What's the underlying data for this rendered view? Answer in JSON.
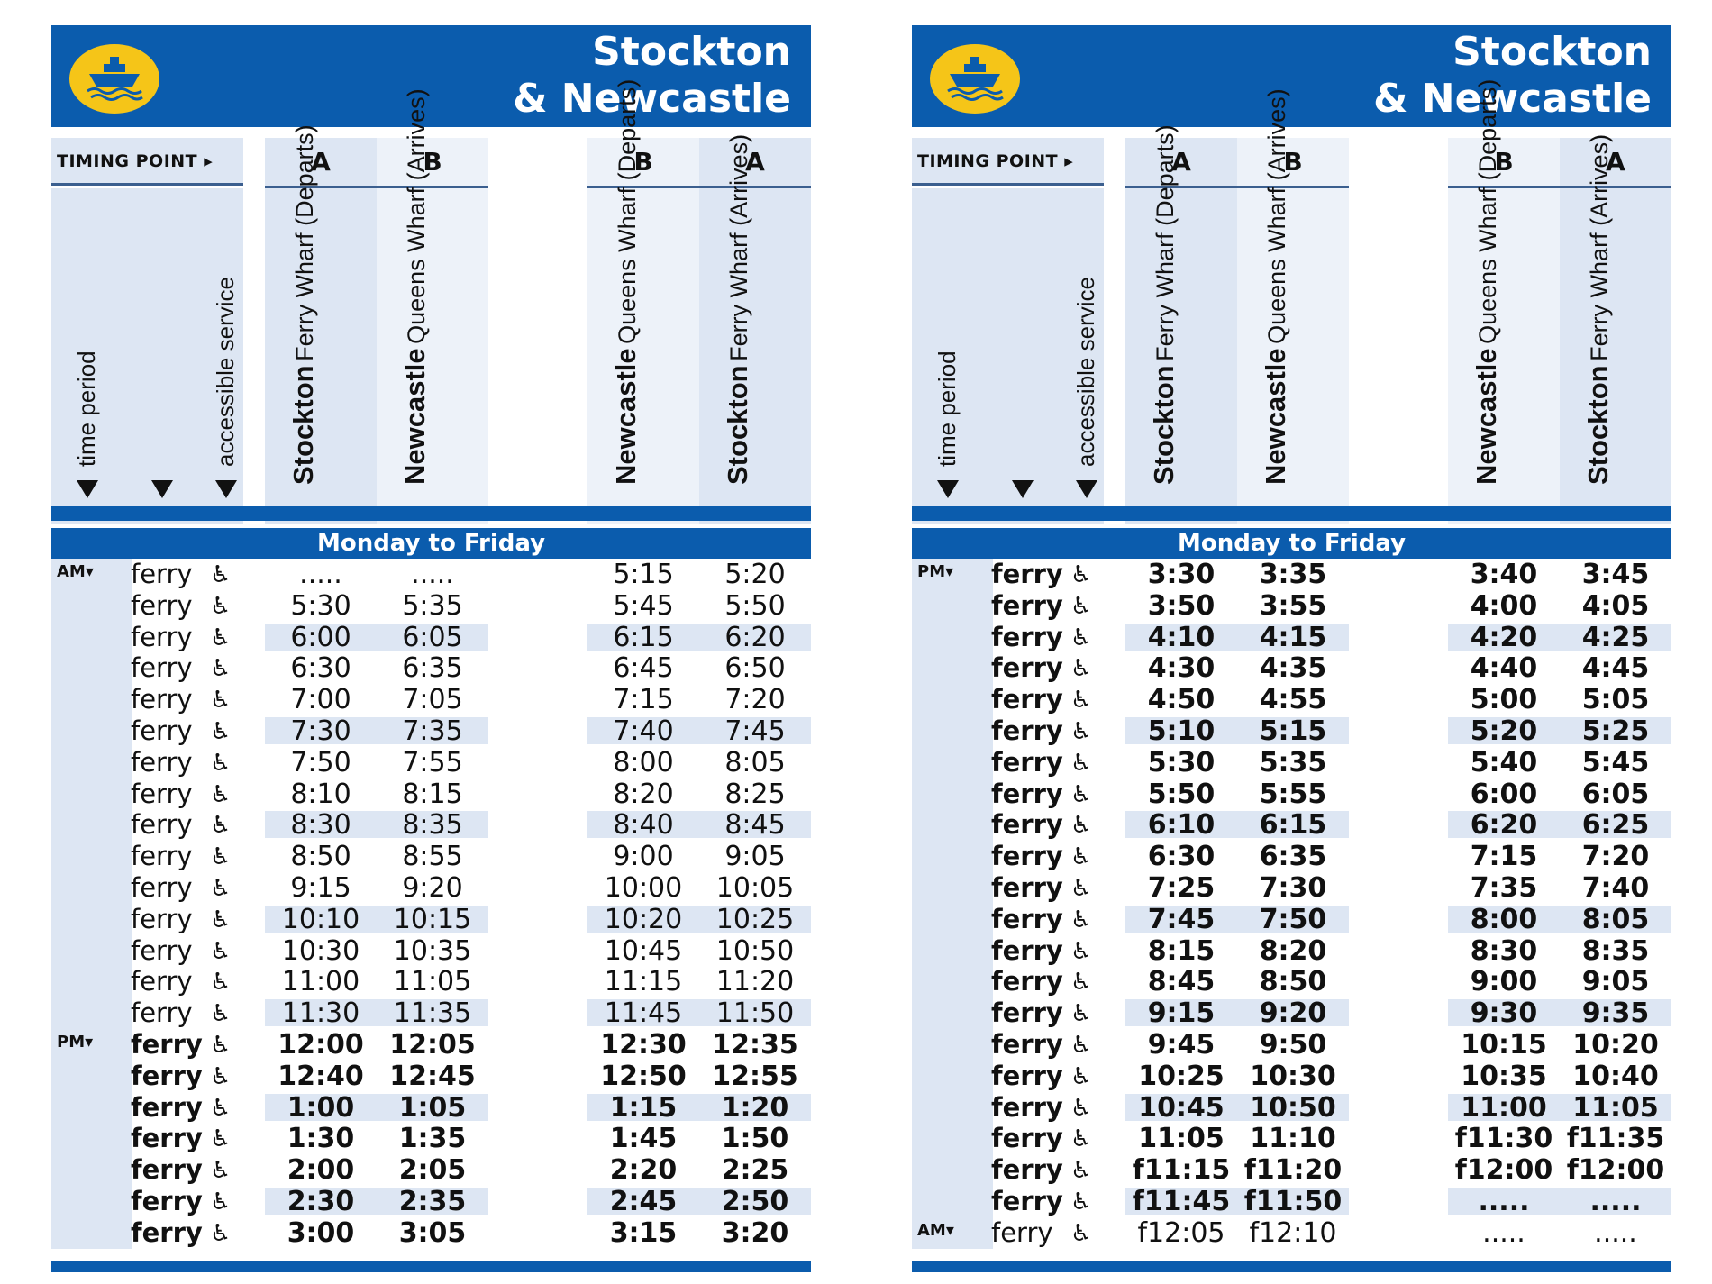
{
  "colors": {
    "brand_blue": "#0b5cad",
    "header_tint": "#dde6f3",
    "row_tint": "#dde6f3",
    "logo_yellow": "#f5c518"
  },
  "panels": [
    {
      "title_line1": "Stockton",
      "title_line2": "& Newcastle",
      "logo_icon": "ferry-icon",
      "timing_point_label": "TIMING POINT ▸",
      "timing_points": [
        "A",
        "B",
        "B",
        "A"
      ],
      "column_labels": {
        "time_period": "time period",
        "accessible": "accessible service",
        "stops": [
          {
            "name": "Stockton",
            "sub": "Ferry Wharf (Departs)"
          },
          {
            "name": "Newcastle",
            "sub": "Queens Wharf (Arrives)"
          },
          {
            "name": "Newcastle",
            "sub": "Queens Wharf (Departs)"
          },
          {
            "name": "Stockton",
            "sub": "Ferry Wharf (Arrives)"
          }
        ]
      },
      "day_label": "Monday to Friday",
      "rows": [
        {
          "period": "AM▾",
          "mode": "ferry",
          "acc": "♿",
          "times": [
            ".....",
            ".....",
            "5:15",
            "5:20"
          ],
          "bold": false
        },
        {
          "period": "",
          "mode": "ferry",
          "acc": "♿",
          "times": [
            "5:30",
            "5:35",
            "5:45",
            "5:50"
          ],
          "bold": false
        },
        {
          "period": "",
          "mode": "ferry",
          "acc": "♿",
          "times": [
            "6:00",
            "6:05",
            "6:15",
            "6:20"
          ],
          "bold": false
        },
        {
          "period": "",
          "mode": "ferry",
          "acc": "♿",
          "times": [
            "6:30",
            "6:35",
            "6:45",
            "6:50"
          ],
          "bold": false
        },
        {
          "period": "",
          "mode": "ferry",
          "acc": "♿",
          "times": [
            "7:00",
            "7:05",
            "7:15",
            "7:20"
          ],
          "bold": false
        },
        {
          "period": "",
          "mode": "ferry",
          "acc": "♿",
          "times": [
            "7:30",
            "7:35",
            "7:40",
            "7:45"
          ],
          "bold": false
        },
        {
          "period": "",
          "mode": "ferry",
          "acc": "♿",
          "times": [
            "7:50",
            "7:55",
            "8:00",
            "8:05"
          ],
          "bold": false
        },
        {
          "period": "",
          "mode": "ferry",
          "acc": "♿",
          "times": [
            "8:10",
            "8:15",
            "8:20",
            "8:25"
          ],
          "bold": false
        },
        {
          "period": "",
          "mode": "ferry",
          "acc": "♿",
          "times": [
            "8:30",
            "8:35",
            "8:40",
            "8:45"
          ],
          "bold": false
        },
        {
          "period": "",
          "mode": "ferry",
          "acc": "♿",
          "times": [
            "8:50",
            "8:55",
            "9:00",
            "9:05"
          ],
          "bold": false
        },
        {
          "period": "",
          "mode": "ferry",
          "acc": "♿",
          "times": [
            "9:15",
            "9:20",
            "10:00",
            "10:05"
          ],
          "bold": false
        },
        {
          "period": "",
          "mode": "ferry",
          "acc": "♿",
          "times": [
            "10:10",
            "10:15",
            "10:20",
            "10:25"
          ],
          "bold": false
        },
        {
          "period": "",
          "mode": "ferry",
          "acc": "♿",
          "times": [
            "10:30",
            "10:35",
            "10:45",
            "10:50"
          ],
          "bold": false
        },
        {
          "period": "",
          "mode": "ferry",
          "acc": "♿",
          "times": [
            "11:00",
            "11:05",
            "11:15",
            "11:20"
          ],
          "bold": false
        },
        {
          "period": "",
          "mode": "ferry",
          "acc": "♿",
          "times": [
            "11:30",
            "11:35",
            "11:45",
            "11:50"
          ],
          "bold": false
        },
        {
          "period": "PM▾",
          "mode": "ferry",
          "acc": "♿",
          "times": [
            "12:00",
            "12:05",
            "12:30",
            "12:35"
          ],
          "bold": true
        },
        {
          "period": "",
          "mode": "ferry",
          "acc": "♿",
          "times": [
            "12:40",
            "12:45",
            "12:50",
            "12:55"
          ],
          "bold": true
        },
        {
          "period": "",
          "mode": "ferry",
          "acc": "♿",
          "times": [
            "1:00",
            "1:05",
            "1:15",
            "1:20"
          ],
          "bold": true
        },
        {
          "period": "",
          "mode": "ferry",
          "acc": "♿",
          "times": [
            "1:30",
            "1:35",
            "1:45",
            "1:50"
          ],
          "bold": true
        },
        {
          "period": "",
          "mode": "ferry",
          "acc": "♿",
          "times": [
            "2:00",
            "2:05",
            "2:20",
            "2:25"
          ],
          "bold": true
        },
        {
          "period": "",
          "mode": "ferry",
          "acc": "♿",
          "times": [
            "2:30",
            "2:35",
            "2:45",
            "2:50"
          ],
          "bold": true
        },
        {
          "period": "",
          "mode": "ferry",
          "acc": "♿",
          "times": [
            "3:00",
            "3:05",
            "3:15",
            "3:20"
          ],
          "bold": true
        }
      ]
    },
    {
      "title_line1": "Stockton",
      "title_line2": "& Newcastle",
      "logo_icon": "ferry-icon",
      "timing_point_label": "TIMING POINT ▸",
      "timing_points": [
        "A",
        "B",
        "B",
        "A"
      ],
      "column_labels": {
        "time_period": "time period",
        "accessible": "accessible service",
        "stops": [
          {
            "name": "Stockton",
            "sub": "Ferry Wharf (Departs)"
          },
          {
            "name": "Newcastle",
            "sub": "Queens Wharf (Arrives)"
          },
          {
            "name": "Newcastle",
            "sub": "Queens Wharf (Departs)"
          },
          {
            "name": "Stockton",
            "sub": "Ferry Wharf (Arrives)"
          }
        ]
      },
      "day_label": "Monday to Friday",
      "rows": [
        {
          "period": "PM▾",
          "mode": "ferry",
          "acc": "♿",
          "times": [
            "3:30",
            "3:35",
            "3:40",
            "3:45"
          ],
          "bold": true
        },
        {
          "period": "",
          "mode": "ferry",
          "acc": "♿",
          "times": [
            "3:50",
            "3:55",
            "4:00",
            "4:05"
          ],
          "bold": true
        },
        {
          "period": "",
          "mode": "ferry",
          "acc": "♿",
          "times": [
            "4:10",
            "4:15",
            "4:20",
            "4:25"
          ],
          "bold": true
        },
        {
          "period": "",
          "mode": "ferry",
          "acc": "♿",
          "times": [
            "4:30",
            "4:35",
            "4:40",
            "4:45"
          ],
          "bold": true
        },
        {
          "period": "",
          "mode": "ferry",
          "acc": "♿",
          "times": [
            "4:50",
            "4:55",
            "5:00",
            "5:05"
          ],
          "bold": true
        },
        {
          "period": "",
          "mode": "ferry",
          "acc": "♿",
          "times": [
            "5:10",
            "5:15",
            "5:20",
            "5:25"
          ],
          "bold": true
        },
        {
          "period": "",
          "mode": "ferry",
          "acc": "♿",
          "times": [
            "5:30",
            "5:35",
            "5:40",
            "5:45"
          ],
          "bold": true
        },
        {
          "period": "",
          "mode": "ferry",
          "acc": "♿",
          "times": [
            "5:50",
            "5:55",
            "6:00",
            "6:05"
          ],
          "bold": true
        },
        {
          "period": "",
          "mode": "ferry",
          "acc": "♿",
          "times": [
            "6:10",
            "6:15",
            "6:20",
            "6:25"
          ],
          "bold": true
        },
        {
          "period": "",
          "mode": "ferry",
          "acc": "♿",
          "times": [
            "6:30",
            "6:35",
            "7:15",
            "7:20"
          ],
          "bold": true
        },
        {
          "period": "",
          "mode": "ferry",
          "acc": "♿",
          "times": [
            "7:25",
            "7:30",
            "7:35",
            "7:40"
          ],
          "bold": true
        },
        {
          "period": "",
          "mode": "ferry",
          "acc": "♿",
          "times": [
            "7:45",
            "7:50",
            "8:00",
            "8:05"
          ],
          "bold": true
        },
        {
          "period": "",
          "mode": "ferry",
          "acc": "♿",
          "times": [
            "8:15",
            "8:20",
            "8:30",
            "8:35"
          ],
          "bold": true
        },
        {
          "period": "",
          "mode": "ferry",
          "acc": "♿",
          "times": [
            "8:45",
            "8:50",
            "9:00",
            "9:05"
          ],
          "bold": true
        },
        {
          "period": "",
          "mode": "ferry",
          "acc": "♿",
          "times": [
            "9:15",
            "9:20",
            "9:30",
            "9:35"
          ],
          "bold": true
        },
        {
          "period": "",
          "mode": "ferry",
          "acc": "♿",
          "times": [
            "9:45",
            "9:50",
            "10:15",
            "10:20"
          ],
          "bold": true
        },
        {
          "period": "",
          "mode": "ferry",
          "acc": "♿",
          "times": [
            "10:25",
            "10:30",
            "10:35",
            "10:40"
          ],
          "bold": true
        },
        {
          "period": "",
          "mode": "ferry",
          "acc": "♿",
          "times": [
            "10:45",
            "10:50",
            "11:00",
            "11:05"
          ],
          "bold": true
        },
        {
          "period": "",
          "mode": "ferry",
          "acc": "♿",
          "times": [
            "11:05",
            "11:10",
            "f11:30",
            "f11:35"
          ],
          "bold": true
        },
        {
          "period": "",
          "mode": "ferry",
          "acc": "♿",
          "times": [
            "f11:15",
            "f11:20",
            "f12:00",
            "f12:00"
          ],
          "bold": true
        },
        {
          "period": "",
          "mode": "ferry",
          "acc": "♿",
          "times": [
            "f11:45",
            "f11:50",
            ".....",
            "....."
          ],
          "bold": true
        },
        {
          "period": "AM▾",
          "mode": "ferry",
          "acc": "♿",
          "times": [
            "f12:05",
            "f12:10",
            ".....",
            "....."
          ],
          "bold": false
        }
      ]
    }
  ]
}
